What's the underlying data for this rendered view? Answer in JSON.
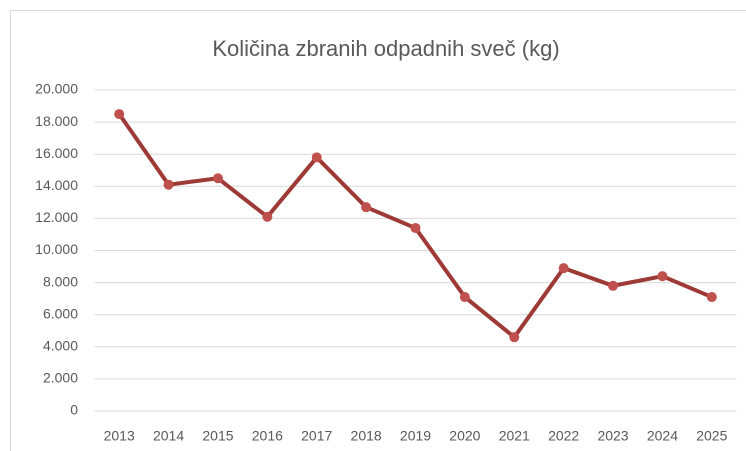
{
  "chart_data": {
    "type": "line",
    "title": "Količina zbranih odpadnih sveč (kg)",
    "categories": [
      "2013",
      "2014",
      "2015",
      "2016",
      "2017",
      "2018",
      "2019",
      "2020",
      "2021",
      "2022",
      "2023",
      "2024",
      "2025"
    ],
    "series": [
      {
        "name": "Količina",
        "color": "#9e3a36",
        "marker_color": "#c0504d",
        "values": [
          18500,
          14100,
          14500,
          12100,
          15800,
          12700,
          11400,
          7100,
          4600,
          8900,
          7800,
          8400,
          7100
        ]
      }
    ],
    "ylim": [
      0,
      20000
    ],
    "yticks": [
      0,
      {
        "value": 2000,
        "label": "2.000"
      },
      {
        "value": 4000,
        "label": "4.000"
      },
      {
        "value": 6000,
        "label": "6.000"
      },
      {
        "value": 8000,
        "label": "8.000"
      },
      {
        "value": 10000,
        "label": "10.000"
      },
      {
        "value": 12000,
        "label": "12.000"
      },
      {
        "value": 14000,
        "label": "14.000"
      },
      {
        "value": 16000,
        "label": "16.000"
      },
      {
        "value": 18000,
        "label": "18.000"
      },
      {
        "value": 20000,
        "label": "20.000"
      }
    ],
    "grid": true
  }
}
